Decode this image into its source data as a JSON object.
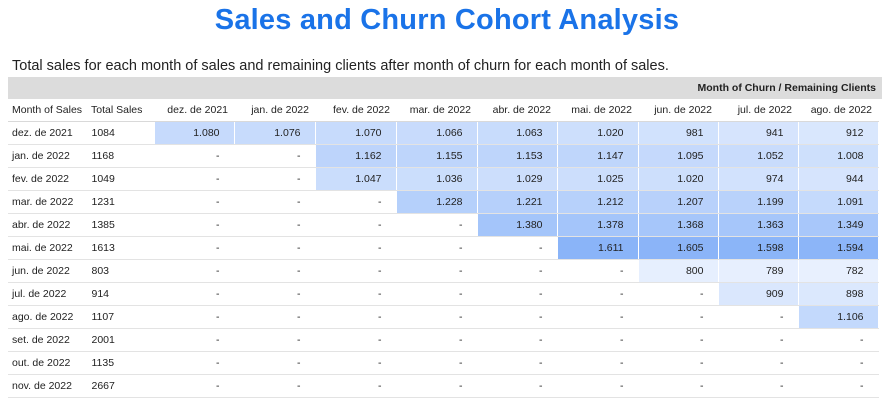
{
  "title": "Sales and Churn Cohort Analysis",
  "subtitle": "Total sales for each month of sales and remaining clients after month of churn for each month of sales.",
  "column_group_label": "Month of Churn / Remaining Clients",
  "columns": {
    "month_of_sales": "Month of Sales",
    "total_sales": "Total Sales",
    "churn_months": [
      "dez. de 2021",
      "jan. de 2022",
      "fev. de 2022",
      "mar. de 2022",
      "abr. de 2022",
      "mai. de 2022",
      "jun. de 2022",
      "jul. de 2022",
      "ago. de 2022"
    ]
  },
  "rows": [
    {
      "month": "dez. de 2021",
      "total": "1084",
      "cells": [
        "1.080",
        "1.076",
        "1.070",
        "1.066",
        "1.063",
        "1.020",
        "981",
        "941",
        "912"
      ]
    },
    {
      "month": "jan. de 2022",
      "total": "1168",
      "cells": [
        "-",
        "-",
        "1.162",
        "1.155",
        "1.153",
        "1.147",
        "1.095",
        "1.052",
        "1.008"
      ]
    },
    {
      "month": "fev. de 2022",
      "total": "1049",
      "cells": [
        "-",
        "-",
        "1.047",
        "1.036",
        "1.029",
        "1.025",
        "1.020",
        "974",
        "944"
      ]
    },
    {
      "month": "mar. de 2022",
      "total": "1231",
      "cells": [
        "-",
        "-",
        "-",
        "1.228",
        "1.221",
        "1.212",
        "1.207",
        "1.199",
        "1.091"
      ]
    },
    {
      "month": "abr. de 2022",
      "total": "1385",
      "cells": [
        "-",
        "-",
        "-",
        "-",
        "1.380",
        "1.378",
        "1.368",
        "1.363",
        "1.349"
      ]
    },
    {
      "month": "mai. de 2022",
      "total": "1613",
      "cells": [
        "-",
        "-",
        "-",
        "-",
        "-",
        "1.611",
        "1.605",
        "1.598",
        "1.594"
      ]
    },
    {
      "month": "jun. de 2022",
      "total": "803",
      "cells": [
        "-",
        "-",
        "-",
        "-",
        "-",
        "-",
        "800",
        "789",
        "782"
      ]
    },
    {
      "month": "jul. de 2022",
      "total": "914",
      "cells": [
        "-",
        "-",
        "-",
        "-",
        "-",
        "-",
        "-",
        "909",
        "898"
      ]
    },
    {
      "month": "ago. de 2022",
      "total": "1107",
      "cells": [
        "-",
        "-",
        "-",
        "-",
        "-",
        "-",
        "-",
        "-",
        "1.106"
      ]
    },
    {
      "month": "set. de 2022",
      "total": "2001",
      "cells": [
        "-",
        "-",
        "-",
        "-",
        "-",
        "-",
        "-",
        "-",
        "-"
      ]
    },
    {
      "month": "out. de 2022",
      "total": "1135",
      "cells": [
        "-",
        "-",
        "-",
        "-",
        "-",
        "-",
        "-",
        "-",
        "-"
      ]
    },
    {
      "month": "nov. de 2022",
      "total": "2667",
      "cells": [
        "-",
        "-",
        "-",
        "-",
        "-",
        "-",
        "-",
        "-",
        "-"
      ]
    }
  ],
  "colors": {
    "title": "#1a73e8",
    "header_band": "#dcdcdc",
    "heat_low": "#e8f0fe",
    "heat_high": "#8ab4f8"
  }
}
